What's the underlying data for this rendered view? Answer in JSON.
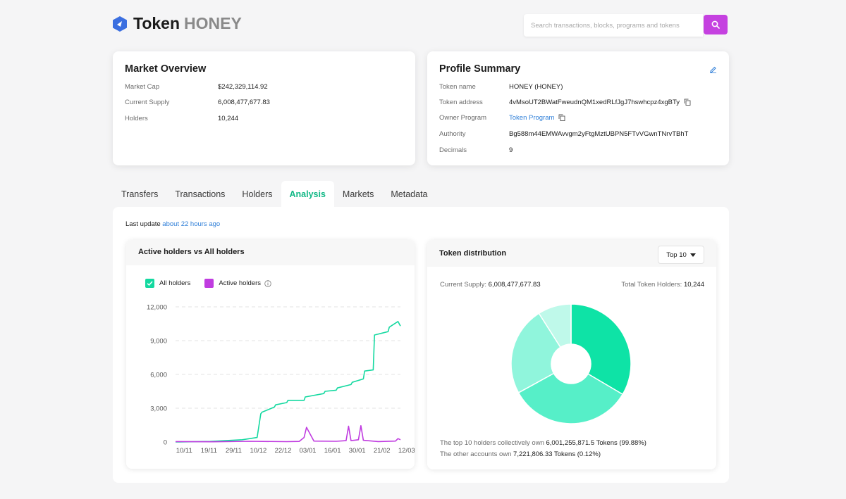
{
  "header": {
    "title": "Token",
    "symbol": "HONEY",
    "search_placeholder": "Search transactions, blocks, programs and tokens"
  },
  "market": {
    "title": "Market Overview",
    "rows": [
      {
        "label": "Market Cap",
        "value": "$242,329,114.92"
      },
      {
        "label": "Current Supply",
        "value": "6,008,477,677.83"
      },
      {
        "label": "Holders",
        "value": "10,244"
      }
    ]
  },
  "profile": {
    "title": "Profile Summary",
    "token_name_label": "Token name",
    "token_name": "HONEY (HONEY)",
    "token_address_label": "Token address",
    "token_address": "4vMsoUT2BWatFweudnQM1xedRLfJgJ7hswhcpz4xgBTy",
    "owner_program_label": "Owner Program",
    "owner_program": "Token Program",
    "authority_label": "Authority",
    "authority": "Bg588m44EMWAvvgm2yFtgMztUBPN5FTvVGwnTNrvTBhT",
    "decimals_label": "Decimals",
    "decimals": "9"
  },
  "tabs": [
    "Transfers",
    "Transactions",
    "Holders",
    "Analysis",
    "Markets",
    "Metadata"
  ],
  "active_tab": "Analysis",
  "last_update": {
    "label": "Last update",
    "value": "about 22 hours ago"
  },
  "holders_chart": {
    "title": "Active holders vs All holders",
    "legend_all": "All holders",
    "legend_active": "Active holders"
  },
  "distribution": {
    "title": "Token distribution",
    "dropdown": "Top 10",
    "supply_label": "Current Supply:",
    "supply_value": "6,008,477,677.83",
    "holders_label": "Total Token Holders:",
    "holders_value": "10,244",
    "foot1_prefix": "The top 10 holders collectively own",
    "foot1_value": "6,001,255,871.5 Tokens (99.88%)",
    "foot2_prefix": "The other accounts own",
    "foot2_value": "7,221,806.33 Tokens (0.12%)"
  },
  "colors": {
    "accent_purple": "#c541e0",
    "accent_green": "#12b886",
    "link_blue": "#2f7fd8",
    "all_holders_line": "#14d9a0",
    "active_holders_line": "#c03ce0"
  },
  "chart_data": [
    {
      "type": "line",
      "title": "Active holders vs All holders",
      "categories": [
        "10/11",
        "19/11",
        "29/11",
        "10/12",
        "22/12",
        "03/01",
        "16/01",
        "30/01",
        "21/02",
        "12/03"
      ],
      "ylim": [
        0,
        12000
      ],
      "yticks": [
        0,
        3000,
        6000,
        9000,
        12000
      ],
      "ytick_labels": [
        "0",
        "3,000",
        "6,000",
        "9,000",
        "12,000"
      ],
      "grid": true,
      "legend": "top-left",
      "series": [
        {
          "name": "All holders",
          "color": "#14d9a0",
          "x": [
            0,
            1.4,
            2.7,
            3.3,
            3.45,
            3.5,
            4.0,
            4.05,
            4.5,
            4.55,
            5.2,
            5.25,
            6.0,
            6.05,
            6.5,
            6.55,
            7.1,
            7.15,
            7.6,
            7.65,
            8.0,
            8.05,
            8.6,
            8.65,
            9.0,
            9.1
          ],
          "values": [
            0,
            50,
            200,
            400,
            2500,
            2650,
            3100,
            3300,
            3500,
            3700,
            3700,
            4000,
            4300,
            4500,
            4600,
            4800,
            5100,
            5300,
            5600,
            6300,
            6400,
            9500,
            9800,
            10200,
            10700,
            10300
          ]
        },
        {
          "name": "Active holders",
          "color": "#c03ce0",
          "x": [
            0,
            1.5,
            3.0,
            4.5,
            5.0,
            5.2,
            5.3,
            5.6,
            6.5,
            6.9,
            7.0,
            7.1,
            7.4,
            7.5,
            7.6,
            8.2,
            8.9,
            9.0,
            9.1
          ],
          "values": [
            40,
            20,
            60,
            30,
            50,
            400,
            1300,
            80,
            60,
            120,
            1400,
            120,
            200,
            1450,
            150,
            40,
            80,
            300,
            200
          ]
        }
      ]
    },
    {
      "type": "pie",
      "title": "Token distribution",
      "donut": true,
      "slices": [
        {
          "value": 33.5,
          "color": "#0ee3a6"
        },
        {
          "value": 33.5,
          "color": "#56efc8"
        },
        {
          "value": 24.0,
          "color": "#90f5dc"
        },
        {
          "value": 9.0,
          "color": "#bff9ea"
        }
      ]
    }
  ]
}
